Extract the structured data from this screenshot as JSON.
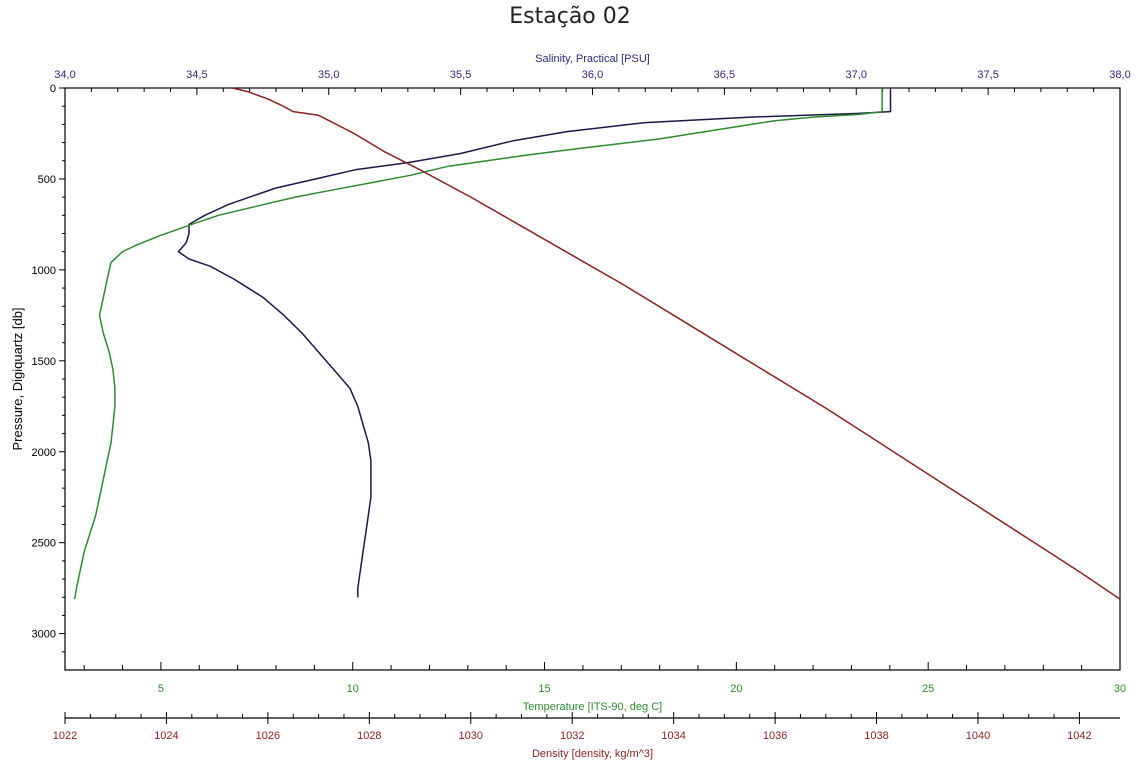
{
  "page_title": "Estação 02",
  "chart_data": {
    "type": "line",
    "title": "Estação 02",
    "y_axis": {
      "label": "Pressure, Digiquartz [db]",
      "range": [
        0,
        3200
      ],
      "inverted": true,
      "ticks": [
        0,
        500,
        1000,
        1500,
        2000,
        2500,
        3000
      ],
      "tick_labels": [
        "0",
        "500",
        "1000",
        "1500",
        "2000",
        "2500",
        "3000"
      ]
    },
    "axes": {
      "salinity": {
        "label": "Salinity, Practical [PSU]",
        "position": "top",
        "color": "#2b2b7a",
        "range": [
          34.0,
          38.0
        ],
        "ticks": [
          34.0,
          34.5,
          35.0,
          35.5,
          36.0,
          36.5,
          37.0,
          37.5,
          38.0
        ],
        "tick_labels": [
          "34,0",
          "34,5",
          "35,0",
          "35,5",
          "36,0",
          "36,5",
          "37,0",
          "37,5",
          "38,0"
        ]
      },
      "temperature": {
        "label": "Temperature [ITS-90, deg C]",
        "position": "bottom",
        "color": "#2e8b2e",
        "range": [
          2.5,
          30
        ],
        "ticks": [
          5,
          10,
          15,
          20,
          25,
          30
        ],
        "tick_labels": [
          "5",
          "10",
          "15",
          "20",
          "25",
          "30"
        ]
      },
      "density": {
        "label": "Density [density, kg/m^3]",
        "position": "bottom-secondary",
        "color": "#8b2323",
        "range": [
          1022,
          1042.8
        ],
        "ticks": [
          1022,
          1024,
          1026,
          1028,
          1030,
          1032,
          1034,
          1036,
          1038,
          1040,
          1042
        ],
        "tick_labels": [
          "1022",
          "1024",
          "1026",
          "1028",
          "1030",
          "1032",
          "1034",
          "1036",
          "1038",
          "1040",
          "1042"
        ]
      }
    },
    "grid": false,
    "series": [
      {
        "axis": "salinity",
        "color": "#1a1a4a",
        "points": [
          [
            37.13,
            0
          ],
          [
            37.13,
            130
          ],
          [
            37.0,
            140
          ],
          [
            36.6,
            160
          ],
          [
            36.2,
            190
          ],
          [
            35.9,
            240
          ],
          [
            35.7,
            290
          ],
          [
            35.5,
            360
          ],
          [
            35.3,
            410
          ],
          [
            35.1,
            450
          ],
          [
            34.98,
            490
          ],
          [
            34.8,
            550
          ],
          [
            34.62,
            640
          ],
          [
            34.53,
            700
          ],
          [
            34.47,
            750
          ],
          [
            34.47,
            800
          ],
          [
            34.46,
            850
          ],
          [
            34.43,
            900
          ],
          [
            34.47,
            940
          ],
          [
            34.55,
            980
          ],
          [
            34.64,
            1050
          ],
          [
            34.75,
            1150
          ],
          [
            34.83,
            1250
          ],
          [
            34.9,
            1350
          ],
          [
            34.96,
            1450
          ],
          [
            35.02,
            1550
          ],
          [
            35.08,
            1650
          ],
          [
            35.11,
            1750
          ],
          [
            35.13,
            1850
          ],
          [
            35.15,
            1950
          ],
          [
            35.16,
            2050
          ],
          [
            35.16,
            2150
          ],
          [
            35.16,
            2250
          ],
          [
            35.15,
            2350
          ],
          [
            35.14,
            2450
          ],
          [
            35.13,
            2550
          ],
          [
            35.12,
            2650
          ],
          [
            35.11,
            2750
          ],
          [
            35.11,
            2800
          ]
        ]
      },
      {
        "axis": "temperature",
        "color": "#2e8b2e",
        "points": [
          [
            23.8,
            0
          ],
          [
            23.8,
            130
          ],
          [
            23.2,
            145
          ],
          [
            22.0,
            160
          ],
          [
            21.0,
            180
          ],
          [
            19.5,
            230
          ],
          [
            18.0,
            280
          ],
          [
            16.0,
            330
          ],
          [
            14.5,
            370
          ],
          [
            13.5,
            400
          ],
          [
            12.5,
            430
          ],
          [
            11.5,
            480
          ],
          [
            10.5,
            520
          ],
          [
            9.5,
            560
          ],
          [
            8.5,
            600
          ],
          [
            7.5,
            650
          ],
          [
            6.5,
            700
          ],
          [
            5.8,
            750
          ],
          [
            5.0,
            810
          ],
          [
            4.4,
            860
          ],
          [
            4.0,
            900
          ],
          [
            3.7,
            960
          ],
          [
            3.6,
            1050
          ],
          [
            3.5,
            1150
          ],
          [
            3.4,
            1250
          ],
          [
            3.5,
            1350
          ],
          [
            3.65,
            1450
          ],
          [
            3.75,
            1550
          ],
          [
            3.8,
            1650
          ],
          [
            3.8,
            1750
          ],
          [
            3.75,
            1850
          ],
          [
            3.7,
            1950
          ],
          [
            3.6,
            2050
          ],
          [
            3.5,
            2150
          ],
          [
            3.4,
            2250
          ],
          [
            3.3,
            2350
          ],
          [
            3.15,
            2450
          ],
          [
            3.0,
            2550
          ],
          [
            2.9,
            2650
          ],
          [
            2.8,
            2750
          ],
          [
            2.75,
            2810
          ]
        ]
      },
      {
        "axis": "density",
        "color": "#8b2323",
        "points": [
          [
            1025.3,
            0
          ],
          [
            1025.6,
            20
          ],
          [
            1026.0,
            60
          ],
          [
            1026.3,
            100
          ],
          [
            1026.5,
            130
          ],
          [
            1027.0,
            150
          ],
          [
            1027.7,
            250
          ],
          [
            1028.3,
            350
          ],
          [
            1029.0,
            450
          ],
          [
            1030.0,
            600
          ],
          [
            1031.0,
            760
          ],
          [
            1032.0,
            920
          ],
          [
            1033.0,
            1080
          ],
          [
            1034.0,
            1250
          ],
          [
            1035.0,
            1420
          ],
          [
            1036.0,
            1590
          ],
          [
            1037.0,
            1760
          ],
          [
            1038.0,
            1940
          ],
          [
            1039.0,
            2120
          ],
          [
            1040.0,
            2300
          ],
          [
            1041.0,
            2480
          ],
          [
            1042.0,
            2660
          ],
          [
            1042.8,
            2810
          ]
        ]
      }
    ]
  }
}
